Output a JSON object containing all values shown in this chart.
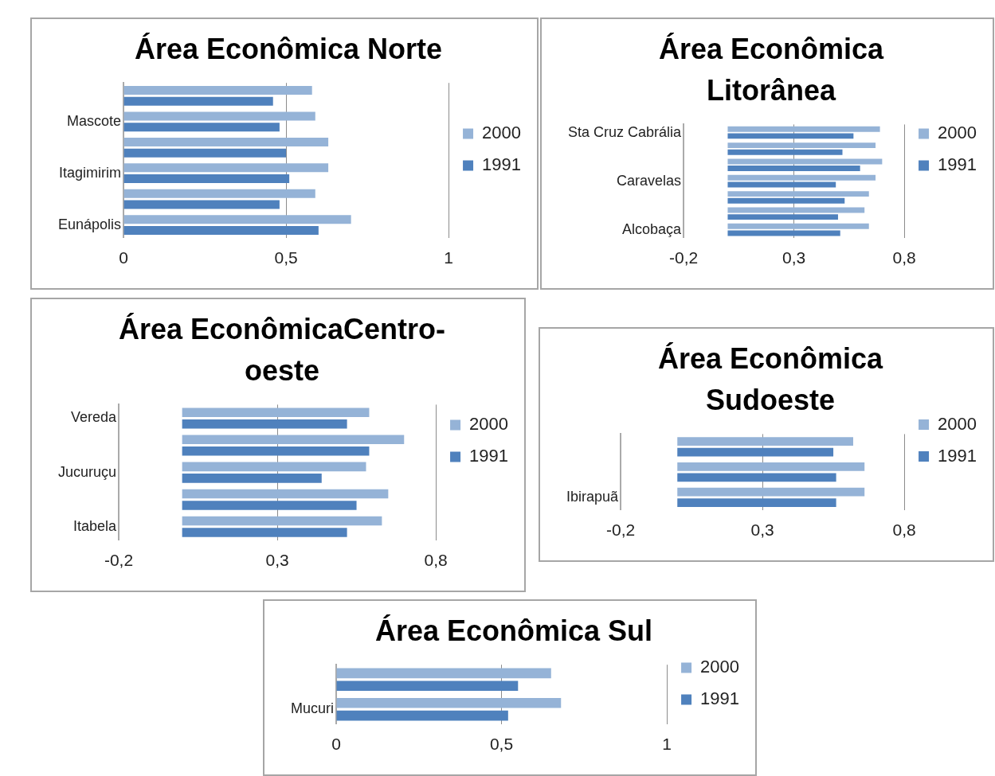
{
  "chart_data": [
    {
      "type": "bar",
      "orientation": "horizontal",
      "title": "Área Econômica Norte",
      "categories": [
        null,
        "Mascote",
        null,
        "Itagimirim",
        null,
        "Eunápolis"
      ],
      "series": [
        {
          "name": "2000",
          "color": "#95b3d7",
          "values": [
            0.58,
            0.59,
            0.63,
            0.63,
            0.59,
            0.7
          ]
        },
        {
          "name": "1991",
          "color": "#4f81bd",
          "values": [
            0.46,
            0.48,
            0.5,
            0.51,
            0.48,
            0.6
          ]
        }
      ],
      "xlim": [
        0,
        1
      ],
      "xticks": [
        {
          "value": 0,
          "label": "0"
        },
        {
          "value": 0.5,
          "label": "0,5"
        },
        {
          "value": 1,
          "label": "1"
        }
      ],
      "grid": "x",
      "legend": "right"
    },
    {
      "type": "bar",
      "orientation": "horizontal",
      "title": "Área Econômica Litorânea",
      "categories": [
        "Sta Cruz Cabrália",
        null,
        null,
        "Caravelas",
        null,
        null,
        "Alcobaça"
      ],
      "series": [
        {
          "name": "2000",
          "color": "#95b3d7",
          "values": [
            0.69,
            0.67,
            0.7,
            0.67,
            0.64,
            0.62,
            0.64
          ]
        },
        {
          "name": "1991",
          "color": "#4f81bd",
          "values": [
            0.57,
            0.52,
            0.6,
            0.49,
            0.53,
            0.5,
            0.51
          ]
        }
      ],
      "xlim": [
        -0.2,
        0.8
      ],
      "xticks": [
        {
          "value": -0.2,
          "label": "-0,2"
        },
        {
          "value": 0.3,
          "label": "0,3"
        },
        {
          "value": 0.8,
          "label": "0,8"
        }
      ],
      "grid": "x",
      "legend": "right"
    },
    {
      "type": "bar",
      "orientation": "horizontal",
      "title": "Área EconômicaCentro-oeste",
      "categories": [
        "Vereda",
        null,
        "Jucuruçu",
        null,
        "Itabela"
      ],
      "series": [
        {
          "name": "2000",
          "color": "#95b3d7",
          "values": [
            0.59,
            0.7,
            0.58,
            0.65,
            0.63
          ]
        },
        {
          "name": "1991",
          "color": "#4f81bd",
          "values": [
            0.52,
            0.59,
            0.44,
            0.55,
            0.52
          ]
        }
      ],
      "xlim": [
        -0.2,
        0.8
      ],
      "xticks": [
        {
          "value": -0.2,
          "label": "-0,2"
        },
        {
          "value": 0.3,
          "label": "0,3"
        },
        {
          "value": 0.8,
          "label": "0,8"
        }
      ],
      "grid": "x",
      "legend": "right"
    },
    {
      "type": "bar",
      "orientation": "horizontal",
      "title": "Área Econômica Sudoeste",
      "categories": [
        null,
        null,
        "Ibirapuã"
      ],
      "series": [
        {
          "name": "2000",
          "color": "#95b3d7",
          "values": [
            0.62,
            0.66,
            0.66
          ]
        },
        {
          "name": "1991",
          "color": "#4f81bd",
          "values": [
            0.55,
            0.56,
            0.56
          ]
        }
      ],
      "xlim": [
        -0.2,
        0.8
      ],
      "xticks": [
        {
          "value": -0.2,
          "label": "-0,2"
        },
        {
          "value": 0.3,
          "label": "0,3"
        },
        {
          "value": 0.8,
          "label": "0,8"
        }
      ],
      "grid": "x",
      "legend": "right"
    },
    {
      "type": "bar",
      "orientation": "horizontal",
      "title": "Área Econômica Sul",
      "categories": [
        null,
        "Mucuri"
      ],
      "series": [
        {
          "name": "2000",
          "color": "#95b3d7",
          "values": [
            0.65,
            0.68
          ]
        },
        {
          "name": "1991",
          "color": "#4f81bd",
          "values": [
            0.55,
            0.52
          ]
        }
      ],
      "xlim": [
        0,
        1
      ],
      "xticks": [
        {
          "value": 0,
          "label": "0"
        },
        {
          "value": 0.5,
          "label": "0,5"
        },
        {
          "value": 1,
          "label": "1"
        }
      ],
      "grid": "x",
      "legend": "right"
    }
  ]
}
